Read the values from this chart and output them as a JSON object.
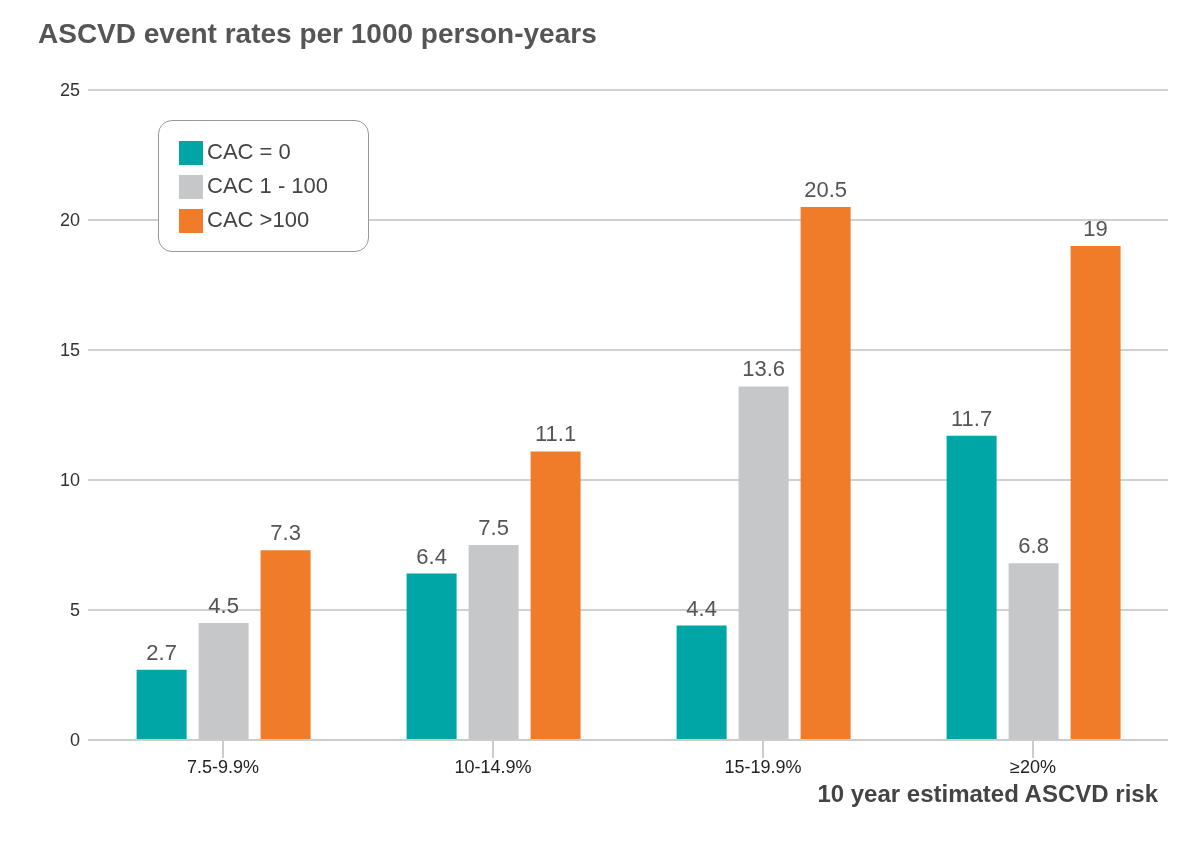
{
  "chart_data": {
    "type": "bar",
    "title": "ASCVD event rates per 1000 person-years",
    "xlabel": "10 year estimated ASCVD risk",
    "categories": [
      "7.5-9.9%",
      "10-14.9%",
      "15-19.9%",
      "≥20%"
    ],
    "series": [
      {
        "name": "CAC = 0",
        "color": "#00a6a6",
        "values": [
          2.7,
          6.4,
          4.4,
          11.7
        ]
      },
      {
        "name": "CAC 1 - 100",
        "color": "#c6c7c9",
        "values": [
          4.5,
          7.5,
          13.6,
          6.8
        ]
      },
      {
        "name": "CAC >100",
        "color": "#f07c2a",
        "values": [
          7.3,
          11.1,
          20.5,
          19
        ]
      }
    ],
    "ylim": [
      0,
      25
    ],
    "yticks": [
      0,
      5,
      10,
      15,
      20,
      25
    ],
    "grid": "y",
    "legend": "top left",
    "data_labels": true
  }
}
